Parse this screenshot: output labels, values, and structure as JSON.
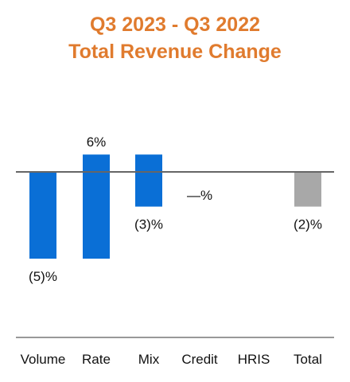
{
  "chart_data": {
    "type": "bar",
    "chart_kind": "waterfall",
    "title_lines": [
      "Q3 2023 - Q3 2022",
      "Total Revenue Change"
    ],
    "categories": [
      "Volume",
      "Rate",
      "Mix",
      "Credit",
      "HRIS",
      "Total"
    ],
    "values": [
      -5,
      6,
      -3,
      0,
      0,
      -2
    ],
    "cumulative_start": [
      0,
      -5,
      1,
      -2,
      -2,
      0
    ],
    "data_labels": [
      "(5)%",
      "6%",
      "(3)%",
      "—%",
      "",
      "(2)%"
    ],
    "unit": "%",
    "grid": false,
    "legend": "none",
    "colors": {
      "change_bar": "#0a6fd6",
      "total_bar": "#a8a8a8",
      "title": "#e07b2e",
      "baseline": "#666666",
      "axis": "#999999"
    }
  }
}
